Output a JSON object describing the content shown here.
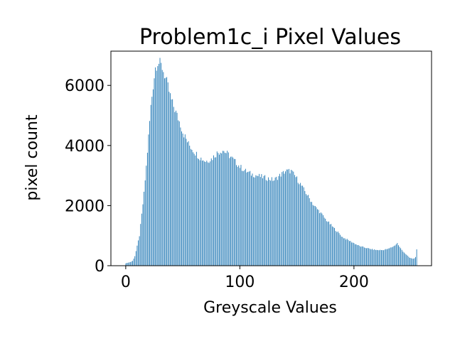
{
  "chart_data": {
    "type": "bar",
    "title": "Problem1c_i Pixel Values",
    "xlabel": "Greyscale Values",
    "ylabel": "pixel count",
    "xlim": [
      -13,
      268
    ],
    "ylim": [
      0,
      7140
    ],
    "xticks": [
      0,
      100,
      200
    ],
    "yticks": [
      0,
      2000,
      4000,
      6000
    ],
    "grid": false,
    "legend": "none",
    "bar_color": "#1f77b4",
    "anchors": [
      [
        0,
        80
      ],
      [
        4,
        120
      ],
      [
        6,
        160
      ],
      [
        8,
        320
      ],
      [
        10,
        650
      ],
      [
        12,
        1000
      ],
      [
        14,
        1700
      ],
      [
        16,
        2400
      ],
      [
        18,
        3300
      ],
      [
        20,
        4300
      ],
      [
        22,
        5300
      ],
      [
        24,
        6000
      ],
      [
        26,
        6600
      ],
      [
        28,
        6780
      ],
      [
        30,
        6720
      ],
      [
        32,
        6600
      ],
      [
        34,
        6350
      ],
      [
        36,
        6100
      ],
      [
        38,
        5800
      ],
      [
        40,
        5500
      ],
      [
        42,
        5300
      ],
      [
        44,
        5100
      ],
      [
        46,
        4900
      ],
      [
        48,
        4700
      ],
      [
        50,
        4450
      ],
      [
        55,
        4050
      ],
      [
        60,
        3800
      ],
      [
        65,
        3600
      ],
      [
        70,
        3480
      ],
      [
        75,
        3550
      ],
      [
        80,
        3750
      ],
      [
        85,
        3850
      ],
      [
        90,
        3700
      ],
      [
        95,
        3500
      ],
      [
        100,
        3300
      ],
      [
        105,
        3150
      ],
      [
        110,
        3050
      ],
      [
        115,
        3000
      ],
      [
        120,
        2950
      ],
      [
        125,
        2900
      ],
      [
        130,
        2850
      ],
      [
        135,
        3000
      ],
      [
        140,
        3150
      ],
      [
        145,
        3150
      ],
      [
        150,
        2900
      ],
      [
        155,
        2600
      ],
      [
        160,
        2300
      ],
      [
        165,
        2000
      ],
      [
        170,
        1800
      ],
      [
        175,
        1550
      ],
      [
        180,
        1350
      ],
      [
        185,
        1150
      ],
      [
        190,
        950
      ],
      [
        195,
        850
      ],
      [
        200,
        750
      ],
      [
        205,
        650
      ],
      [
        210,
        600
      ],
      [
        215,
        550
      ],
      [
        220,
        520
      ],
      [
        225,
        520
      ],
      [
        230,
        560
      ],
      [
        235,
        650
      ],
      [
        238,
        750
      ],
      [
        240,
        620
      ],
      [
        243,
        480
      ],
      [
        246,
        360
      ],
      [
        249,
        260
      ],
      [
        252,
        230
      ],
      [
        254,
        280
      ],
      [
        255,
        530
      ]
    ],
    "noise_amplitude": 0.03
  }
}
